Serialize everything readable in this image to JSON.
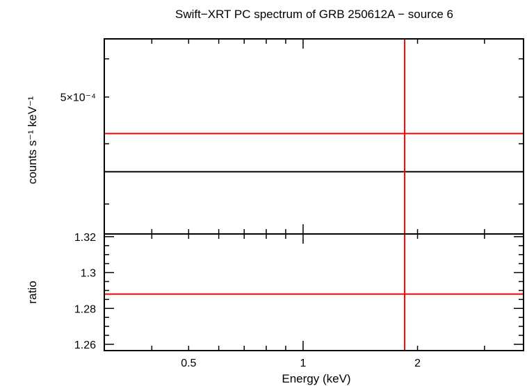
{
  "chart_data": [
    {
      "type": "line",
      "panel": "spectrum",
      "title": "Swift−XRT PC spectrum of GRB 250612A − source 6",
      "xlabel": "",
      "ylabel": "counts s⁻¹ keV⁻¹",
      "xscale": "log",
      "yscale": "log",
      "xlim": [
        0.3,
        3.8
      ],
      "ylim": [
        0.00026,
        0.00066
      ],
      "ytick_labels": [
        {
          "value": 0.0005,
          "text": "5×10⁻⁴"
        }
      ],
      "series": [
        {
          "color": "#000000",
          "x": [
            0.3,
            3.8
          ],
          "y": [
            0.00035,
            0.00035
          ]
        },
        {
          "color": "#ff0000",
          "x": [
            0.3,
            3.8
          ],
          "y": [
            0.00042,
            0.00042
          ]
        }
      ],
      "vline": {
        "color": "#ff0000",
        "x": 1.85
      },
      "grid": false,
      "legend": "none"
    },
    {
      "type": "line",
      "panel": "ratio",
      "title": "",
      "xlabel": "Energy (keV)",
      "ylabel": "ratio",
      "xscale": "log",
      "yscale": "linear",
      "xlim": [
        0.3,
        3.8
      ],
      "ylim": [
        1.2565,
        1.3215
      ],
      "xtick_labels": [
        {
          "value": 0.5,
          "text": "0.5"
        },
        {
          "value": 1,
          "text": "1"
        },
        {
          "value": 2,
          "text": "2"
        }
      ],
      "ytick_labels": [
        {
          "value": 1.26,
          "text": "1.26"
        },
        {
          "value": 1.28,
          "text": "1.28"
        },
        {
          "value": 1.3,
          "text": "1.3"
        },
        {
          "value": 1.32,
          "text": "1.32"
        }
      ],
      "series": [
        {
          "color": "#ff0000",
          "x": [
            0.3,
            3.8
          ],
          "y": [
            1.288,
            1.288
          ]
        }
      ],
      "vline": {
        "color": "#ff0000",
        "x": 1.85
      },
      "grid": false,
      "legend": "none"
    }
  ]
}
